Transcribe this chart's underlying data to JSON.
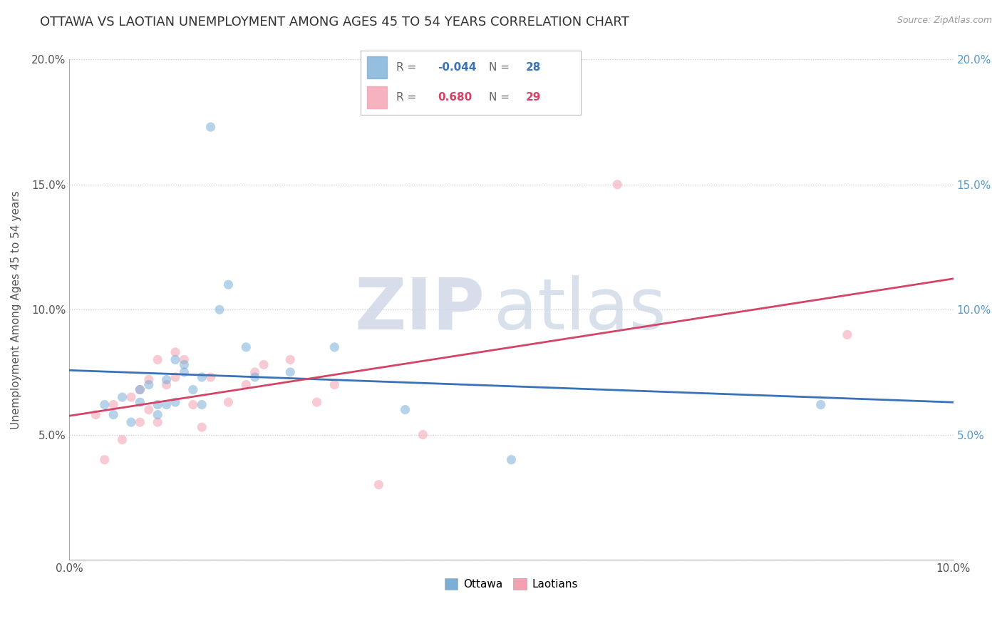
{
  "title": "OTTAWA VS LAOTIAN UNEMPLOYMENT AMONG AGES 45 TO 54 YEARS CORRELATION CHART",
  "source": "Source: ZipAtlas.com",
  "ylabel": "Unemployment Among Ages 45 to 54 years",
  "xlim": [
    0.0,
    0.1
  ],
  "ylim": [
    0.0,
    0.2
  ],
  "xticks": [
    0.0,
    0.1
  ],
  "yticks": [
    0.0,
    0.05,
    0.1,
    0.15,
    0.2
  ],
  "xtick_labels": [
    "0.0%",
    "10.0%"
  ],
  "ytick_labels_left": [
    "",
    "5.0%",
    "10.0%",
    "15.0%",
    "20.0%"
  ],
  "ytick_labels_right": [
    "",
    "5.0%",
    "10.0%",
    "15.0%",
    "20.0%"
  ],
  "ottawa_color": "#7ab0d8",
  "laotian_color": "#f4a0b0",
  "ottawa_line_color": "#3a72b8",
  "laotian_line_color": "#d44466",
  "watermark_zip": "ZIP",
  "watermark_atlas": "atlas",
  "legend_r_ottawa": "-0.044",
  "legend_n_ottawa": "28",
  "legend_r_laotian": "0.680",
  "legend_n_laotian": "29",
  "ottawa_x": [
    0.004,
    0.005,
    0.006,
    0.007,
    0.008,
    0.008,
    0.009,
    0.01,
    0.01,
    0.011,
    0.011,
    0.012,
    0.012,
    0.013,
    0.013,
    0.014,
    0.015,
    0.015,
    0.016,
    0.017,
    0.018,
    0.02,
    0.021,
    0.025,
    0.03,
    0.038,
    0.05,
    0.085
  ],
  "ottawa_y": [
    0.062,
    0.058,
    0.065,
    0.055,
    0.063,
    0.068,
    0.07,
    0.062,
    0.058,
    0.062,
    0.072,
    0.063,
    0.08,
    0.078,
    0.075,
    0.068,
    0.062,
    0.073,
    0.173,
    0.1,
    0.11,
    0.085,
    0.073,
    0.075,
    0.085,
    0.06,
    0.04,
    0.062
  ],
  "laotian_x": [
    0.003,
    0.004,
    0.005,
    0.006,
    0.007,
    0.008,
    0.008,
    0.009,
    0.009,
    0.01,
    0.01,
    0.011,
    0.012,
    0.012,
    0.013,
    0.014,
    0.015,
    0.016,
    0.018,
    0.02,
    0.021,
    0.022,
    0.025,
    0.028,
    0.03,
    0.035,
    0.04,
    0.062,
    0.088
  ],
  "laotian_y": [
    0.058,
    0.04,
    0.062,
    0.048,
    0.065,
    0.055,
    0.068,
    0.06,
    0.072,
    0.055,
    0.08,
    0.07,
    0.083,
    0.073,
    0.08,
    0.062,
    0.053,
    0.073,
    0.063,
    0.07,
    0.075,
    0.078,
    0.08,
    0.063,
    0.07,
    0.03,
    0.05,
    0.15,
    0.09
  ],
  "background_color": "#ffffff",
  "grid_color": "#cccccc",
  "title_fontsize": 13,
  "axis_fontsize": 11,
  "tick_fontsize": 11,
  "dot_size": 90,
  "dot_alpha": 0.55
}
